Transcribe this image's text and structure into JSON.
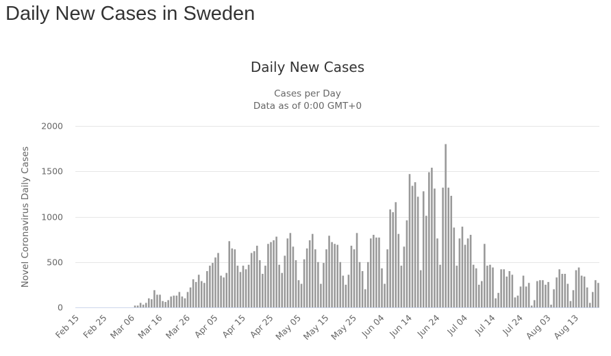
{
  "page": {
    "title": "Daily New Cases in Sweden"
  },
  "chart_data": {
    "type": "bar",
    "title": "Daily New Cases",
    "subtitle_lines": [
      "Cases per Day",
      "Data as of 0:00 GMT+0"
    ],
    "xlabel": "",
    "ylabel": "Novel Coronavirus Daily Cases",
    "ylim": [
      0,
      2000
    ],
    "yticks": [
      0,
      500,
      1000,
      1500,
      2000
    ],
    "grid": true,
    "legend": "none",
    "bar_color": "#999999",
    "start_date": "Feb 15",
    "x_tick_labels": [
      "Feb 15",
      "Feb 25",
      "Mar 06",
      "Mar 16",
      "Mar 26",
      "Apr 05",
      "Apr 15",
      "Apr 25",
      "May 05",
      "May 15",
      "May 25",
      "Jun 04",
      "Jun 14",
      "Jun 24",
      "Jul 04",
      "Jul 14",
      "Jul 24",
      "Aug 03",
      "Aug 13"
    ],
    "x_tick_every_days": 10,
    "values": [
      0,
      0,
      0,
      0,
      0,
      0,
      0,
      0,
      0,
      0,
      0,
      0,
      0,
      0,
      0,
      0,
      0,
      0,
      0,
      0,
      0,
      20,
      20,
      50,
      30,
      50,
      100,
      90,
      190,
      140,
      140,
      70,
      60,
      80,
      120,
      130,
      130,
      170,
      120,
      100,
      170,
      220,
      310,
      280,
      360,
      290,
      270,
      400,
      460,
      490,
      550,
      600,
      350,
      330,
      380,
      730,
      650,
      640,
      460,
      390,
      460,
      420,
      470,
      600,
      620,
      680,
      520,
      370,
      460,
      700,
      720,
      740,
      780,
      470,
      380,
      570,
      760,
      820,
      670,
      520,
      300,
      260,
      530,
      650,
      740,
      810,
      640,
      500,
      260,
      490,
      640,
      790,
      720,
      700,
      690,
      500,
      350,
      250,
      360,
      680,
      640,
      820,
      500,
      400,
      200,
      500,
      760,
      800,
      770,
      770,
      430,
      260,
      640,
      1080,
      1050,
      1160,
      810,
      460,
      670,
      960,
      1470,
      1340,
      1380,
      1220,
      410,
      1280,
      1010,
      1490,
      1540,
      1310,
      760,
      470,
      1320,
      1800,
      1320,
      1230,
      880,
      460,
      760,
      890,
      690,
      760,
      800,
      470,
      430,
      250,
      290,
      700,
      460,
      470,
      440,
      100,
      160,
      420,
      420,
      340,
      400,
      360,
      110,
      130,
      230,
      350,
      230,
      270,
      20,
      80,
      290,
      300,
      300,
      250,
      280,
      30,
      200,
      330,
      420,
      370,
      370,
      260,
      70,
      190,
      410,
      440,
      350,
      340,
      220,
      50,
      170,
      300,
      270
    ]
  }
}
